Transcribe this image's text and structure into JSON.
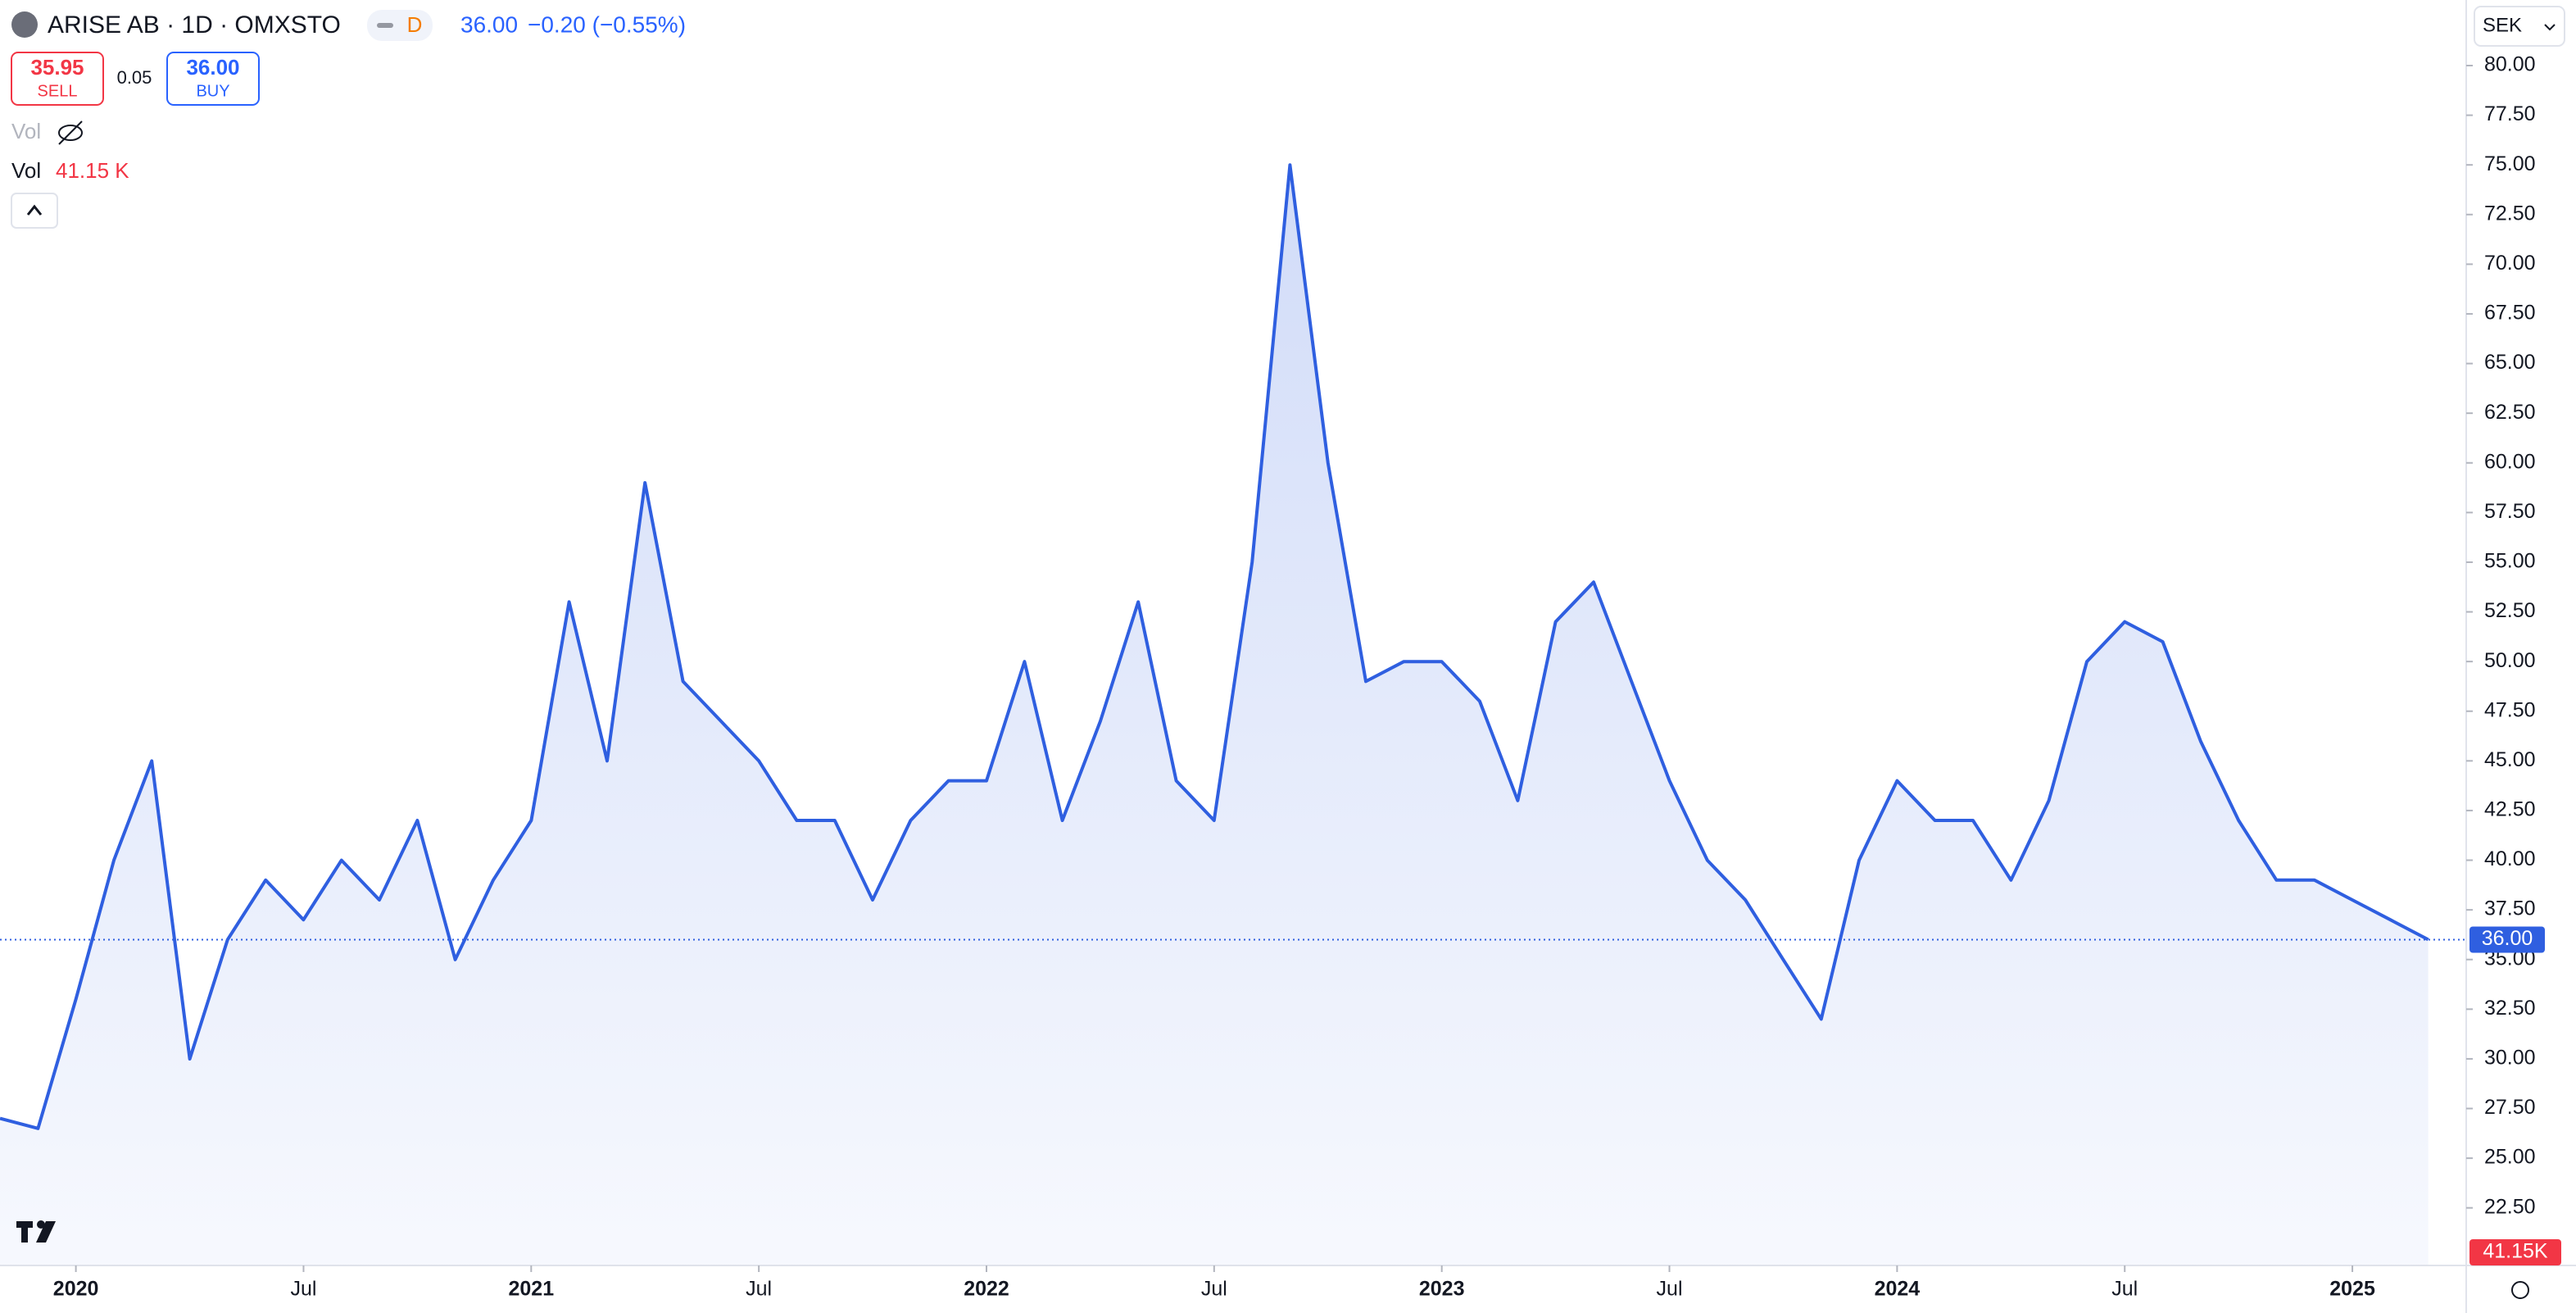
{
  "header": {
    "symbol": "ARISE AB · 1D · OMXSTO",
    "badge": "D",
    "price": "36.00",
    "change": "−0.20 (−0.55%)",
    "sell_price": "35.95",
    "sell_label": "SELL",
    "spread": "0.05",
    "buy_price": "36.00",
    "buy_label": "BUY",
    "vol_hidden": "Vol",
    "vol_label": "Vol",
    "vol_value": "41.15 K",
    "currency": "SEK"
  },
  "chart_data": {
    "type": "area",
    "color": "#2f5fe0",
    "x": [
      "2019-11",
      "2019-12",
      "2020-01",
      "2020-02",
      "2020-03",
      "2020-04",
      "2020-05",
      "2020-06",
      "2020-07",
      "2020-08",
      "2020-09",
      "2020-10",
      "2020-11",
      "2020-12",
      "2021-01",
      "2021-02",
      "2021-03",
      "2021-04",
      "2021-05",
      "2021-06",
      "2021-07",
      "2021-08",
      "2021-09",
      "2021-10",
      "2021-11",
      "2021-12",
      "2022-01",
      "2022-02",
      "2022-03",
      "2022-04",
      "2022-05",
      "2022-06",
      "2022-07",
      "2022-08",
      "2022-09",
      "2022-10",
      "2022-11",
      "2022-12",
      "2023-01",
      "2023-02",
      "2023-03",
      "2023-04",
      "2023-05",
      "2023-06",
      "2023-07",
      "2023-08",
      "2023-09",
      "2023-10",
      "2023-11",
      "2023-12",
      "2024-01",
      "2024-02",
      "2024-03",
      "2024-04",
      "2024-05",
      "2024-06",
      "2024-07",
      "2024-08",
      "2024-09",
      "2024-10",
      "2024-11",
      "2024-12",
      "2025-01",
      "2025-02",
      "2025-03"
    ],
    "values": [
      27,
      26.5,
      33,
      40,
      45,
      30,
      36,
      39,
      37,
      40,
      38,
      42,
      35,
      39,
      42,
      53,
      45,
      59,
      49,
      47,
      45,
      42,
      42,
      38,
      42,
      44,
      44,
      50,
      42,
      47,
      53,
      44,
      42,
      55,
      75,
      60,
      49,
      50,
      50,
      48,
      43,
      52,
      54,
      49,
      44,
      40,
      38,
      35,
      32,
      40,
      44,
      42,
      42,
      39,
      43,
      50,
      52,
      51,
      46,
      42,
      39,
      39,
      38,
      37,
      36
    ],
    "xlim": [
      "2019-11",
      "2025-04"
    ],
    "xticks": [
      {
        "value": "2020-01",
        "label": "2020"
      },
      {
        "value": "2020-07",
        "label": "Jul"
      },
      {
        "value": "2021-01",
        "label": "2021"
      },
      {
        "value": "2021-07",
        "label": "Jul"
      },
      {
        "value": "2022-01",
        "label": "2022"
      },
      {
        "value": "2022-07",
        "label": "Jul"
      },
      {
        "value": "2023-01",
        "label": "2023"
      },
      {
        "value": "2023-07",
        "label": "Jul"
      },
      {
        "value": "2024-01",
        "label": "2024"
      },
      {
        "value": "2024-07",
        "label": "Jul"
      },
      {
        "value": "2025-01",
        "label": "2025"
      }
    ],
    "ylim": [
      19.6,
      83.3
    ],
    "yticks": [
      {
        "value": 22.5,
        "label": "22.50"
      },
      {
        "value": 25,
        "label": "25.00"
      },
      {
        "value": 27.5,
        "label": "27.50"
      },
      {
        "value": 30,
        "label": "30.00"
      },
      {
        "value": 32.5,
        "label": "32.50"
      },
      {
        "value": 35,
        "label": "35.00"
      },
      {
        "value": 37.5,
        "label": "37.50"
      },
      {
        "value": 40,
        "label": "40.00"
      },
      {
        "value": 42.5,
        "label": "42.50"
      },
      {
        "value": 45,
        "label": "45.00"
      },
      {
        "value": 47.5,
        "label": "47.50"
      },
      {
        "value": 50,
        "label": "50.00"
      },
      {
        "value": 52.5,
        "label": "52.50"
      },
      {
        "value": 55,
        "label": "55.00"
      },
      {
        "value": 57.5,
        "label": "57.50"
      },
      {
        "value": 60,
        "label": "60.00"
      },
      {
        "value": 62.5,
        "label": "62.50"
      },
      {
        "value": 65,
        "label": "65.00"
      },
      {
        "value": 67.5,
        "label": "67.50"
      },
      {
        "value": 70,
        "label": "70.00"
      },
      {
        "value": 72.5,
        "label": "72.50"
      },
      {
        "value": 75,
        "label": "75.00"
      },
      {
        "value": 77.5,
        "label": "77.50"
      },
      {
        "value": 80,
        "label": "80.00"
      }
    ],
    "last_price": {
      "value": 36,
      "label": "36.00"
    },
    "last_volume_label": "41.15K"
  }
}
